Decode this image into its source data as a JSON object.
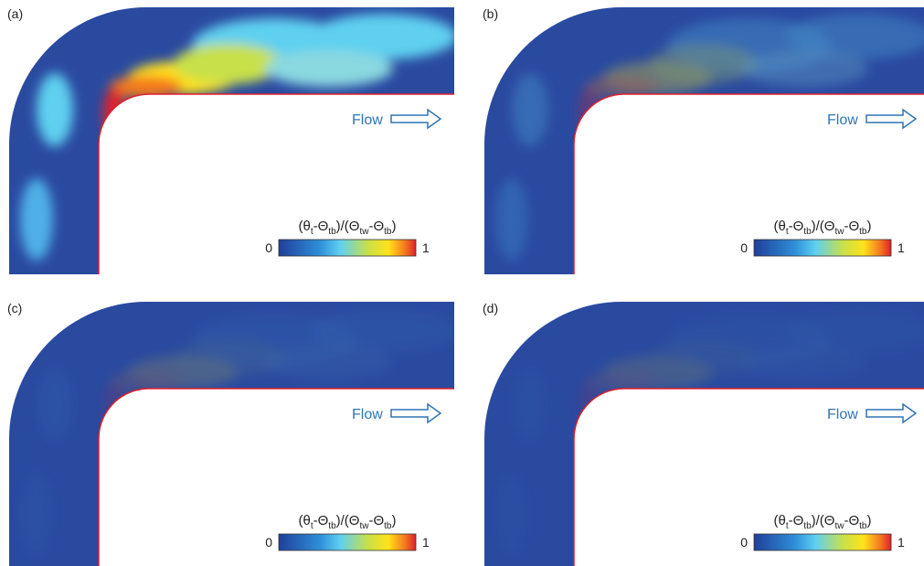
{
  "panels": [
    {
      "label": "(a)",
      "flow": "Flow",
      "colorbar": {
        "title_parts": [
          "(θ",
          "t",
          "-Θ",
          "tb",
          ")/(Θ",
          "tw",
          "-Θ",
          "tb",
          ")"
        ],
        "min": 0,
        "max": 1
      }
    },
    {
      "label": "(b)",
      "flow": "Flow",
      "colorbar": {
        "title_parts": [
          "(θ",
          "t",
          "-Θ",
          "tb",
          ")/(Θ",
          "tw",
          "-Θ",
          "tb",
          ")"
        ],
        "min": 0,
        "max": 1
      }
    },
    {
      "label": "(c)",
      "flow": "Flow",
      "colorbar": {
        "title_parts": [
          "(θ",
          "t",
          "-Θ",
          "tb",
          ")/(Θ",
          "tw",
          "-Θ",
          "tb",
          ")"
        ],
        "min": 0,
        "max": 1
      }
    },
    {
      "label": "(d)",
      "flow": "Flow",
      "colorbar": {
        "title_parts": [
          "(θ",
          "t",
          "-Θ",
          "tb",
          ")/(Θ",
          "tw",
          "-Θ",
          "tb",
          ")"
        ],
        "min": 0,
        "max": 1
      }
    }
  ]
}
